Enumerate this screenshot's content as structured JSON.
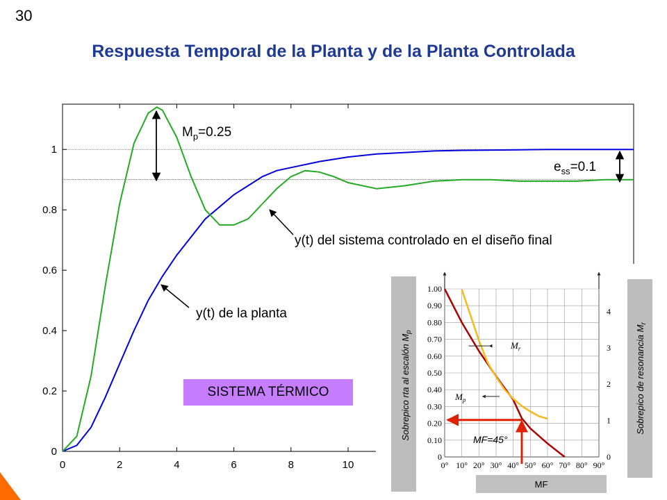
{
  "slide_number": "30",
  "title": "Respuesta Temporal de la Planta y de la Planta Controlada",
  "chart_data": {
    "type": "line",
    "xlim": [
      0,
      20
    ],
    "ylim": [
      0,
      1.15
    ],
    "x_ticks": [
      0,
      2,
      4,
      6,
      8,
      10
    ],
    "y_ticks": [
      0,
      0.2,
      0.4,
      0.6,
      0.8,
      1
    ],
    "reference_lines": [
      1.0,
      0.9
    ],
    "series": [
      {
        "color": "#0000dd",
        "x": [
          0,
          0.5,
          1,
          1.5,
          2,
          2.5,
          3,
          3.5,
          4,
          4.5,
          5,
          5.5,
          6,
          6.5,
          7,
          7.5,
          8,
          9,
          10,
          11,
          12,
          13,
          14,
          15,
          16,
          17,
          18,
          19,
          20
        ],
        "y": [
          0,
          0.02,
          0.08,
          0.18,
          0.29,
          0.4,
          0.5,
          0.58,
          0.65,
          0.71,
          0.77,
          0.81,
          0.85,
          0.88,
          0.91,
          0.93,
          0.94,
          0.96,
          0.975,
          0.985,
          0.99,
          0.995,
          0.997,
          0.998,
          0.999,
          1.0,
          1.0,
          1.0,
          1.0
        ]
      },
      {
        "color": "#22aa22",
        "x": [
          0,
          0.5,
          1,
          1.5,
          2,
          2.5,
          3,
          3.3,
          3.5,
          4,
          4.5,
          5,
          5.5,
          6,
          6.5,
          7,
          7.5,
          8,
          8.5,
          9,
          9.5,
          10,
          11,
          12,
          13,
          14,
          15,
          16,
          17,
          18,
          19,
          20
        ],
        "y": [
          0,
          0.05,
          0.25,
          0.55,
          0.82,
          1.02,
          1.12,
          1.14,
          1.13,
          1.04,
          0.91,
          0.8,
          0.75,
          0.75,
          0.77,
          0.82,
          0.87,
          0.91,
          0.93,
          0.925,
          0.91,
          0.89,
          0.87,
          0.88,
          0.895,
          0.9,
          0.9,
          0.895,
          0.895,
          0.895,
          0.9,
          0.9
        ]
      }
    ],
    "annotations": {
      "mp_label": "M",
      "mp_sub": "p",
      "mp_value": "=0.25",
      "ess_label": "e",
      "ess_sub": "ss",
      "ess_value": "=0.1",
      "controlled_label": "y(t) del sistema controlado en el diseño final",
      "plant_label": "y(t) de la planta"
    }
  },
  "badge_text": "SISTEMA TÉRMICO",
  "inset": {
    "y_left_ticks": [
      "1.00",
      "0.90",
      "0.80",
      "0.70",
      "0.60",
      "0.50",
      "0.40",
      "0.30",
      "0.20",
      "0.10",
      "0"
    ],
    "y_right_ticks": [
      "4",
      "3",
      "2",
      "1",
      "0"
    ],
    "x_ticks": [
      "0°",
      "10°",
      "20°",
      "30°",
      "40°",
      "50°",
      "60°",
      "70°",
      "80°",
      "90°"
    ],
    "left_label": "Sobrepico rta al escalón M",
    "left_label_sub": "p",
    "right_label": "Sobrepico de resonancia M",
    "right_label_sub": "r",
    "mr_label": "M",
    "mr_sub": "r",
    "mp_label": "M",
    "mp_sub": "p",
    "mf_annotation": "MF=45°",
    "x_label": "MF",
    "mp_curve": {
      "color": "#aa0000",
      "x": [
        0,
        10,
        20,
        30,
        40,
        45,
        50,
        60,
        70
      ],
      "y": [
        1.0,
        0.8,
        0.63,
        0.48,
        0.34,
        0.23,
        0.17,
        0.08,
        0.0
      ]
    },
    "mr_curve": {
      "color": "#f5b91e",
      "x": [
        10,
        15,
        20,
        25,
        30,
        35,
        40,
        45,
        50,
        55,
        60
      ],
      "y": [
        4.6,
        3.9,
        3.2,
        2.6,
        2.2,
        1.85,
        1.6,
        1.4,
        1.25,
        1.12,
        1.05
      ]
    }
  }
}
